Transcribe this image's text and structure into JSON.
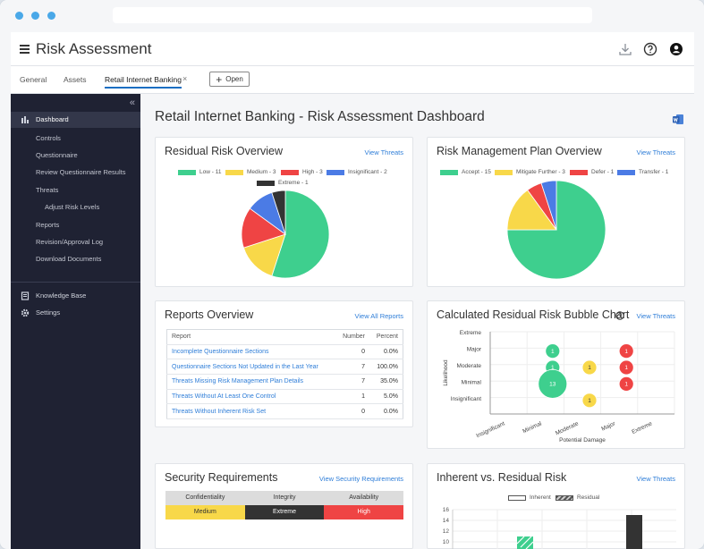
{
  "browser": {
    "dots": 3
  },
  "app": {
    "title": "Risk Assessment"
  },
  "tabs": [
    {
      "label": "General"
    },
    {
      "label": "Assets"
    },
    {
      "label": "Retail Internet Banking",
      "active": true
    }
  ],
  "open_button": {
    "label": "Open"
  },
  "sidebar": {
    "dashboard": "Dashboard",
    "items": [
      {
        "label": "Controls"
      },
      {
        "label": "Questionnaire"
      },
      {
        "label": "Review Questionnaire Results"
      },
      {
        "label": "Threats"
      },
      {
        "label": "Adjust Risk Levels"
      },
      {
        "label": "Reports"
      },
      {
        "label": "Revision/Approval Log"
      },
      {
        "label": "Download Documents"
      }
    ],
    "knowledge_base": "Knowledge Base",
    "settings": "Settings"
  },
  "page": {
    "title": "Retail Internet Banking - Risk Assessment Dashboard"
  },
  "residual": {
    "title": "Residual Risk Overview",
    "link": "View Threats",
    "legend": [
      {
        "label": "Low - 11",
        "color": "#3ecf8e"
      },
      {
        "label": "Medium - 3",
        "color": "#f8d849"
      },
      {
        "label": "High - 3",
        "color": "#ef4444"
      },
      {
        "label": "Insignificant - 2",
        "color": "#4b7be5"
      },
      {
        "label": "Extreme - 1",
        "color": "#333333"
      }
    ]
  },
  "rmp": {
    "title": "Risk Management Plan Overview",
    "link": "View Threats",
    "legend": [
      {
        "label": "Accept - 15",
        "color": "#3ecf8e"
      },
      {
        "label": "Mitigate Further - 3",
        "color": "#f8d849"
      },
      {
        "label": "Defer - 1",
        "color": "#ef4444"
      },
      {
        "label": "Transfer - 1",
        "color": "#4b7be5"
      }
    ]
  },
  "reports": {
    "title": "Reports Overview",
    "link": "View All Reports",
    "headers": {
      "report": "Report",
      "number": "Number",
      "percent": "Percent"
    },
    "rows": [
      {
        "name": "Incomplete Questionnaire Sections",
        "number": "0",
        "percent": "0.0%"
      },
      {
        "name": "Questionnaire Sections Not Updated in the Last Year",
        "number": "7",
        "percent": "100.0%"
      },
      {
        "name": "Threats Missing Risk Management Plan Details",
        "number": "7",
        "percent": "35.0%"
      },
      {
        "name": "Threats Without At Least One Control",
        "number": "1",
        "percent": "5.0%"
      },
      {
        "name": "Threats Without Inherent Risk Set",
        "number": "0",
        "percent": "0.0%"
      }
    ]
  },
  "bubble": {
    "title": "Calculated Residual Risk Bubble Chart",
    "link": "View Threats",
    "y_labels": [
      "Extreme",
      "Major",
      "Moderate",
      "Minimal",
      "Insignificant"
    ],
    "x_labels": [
      "Insignificant",
      "Minimal",
      "Moderate",
      "Major",
      "Extreme"
    ],
    "y_axis": "Likelihood",
    "x_axis": "Potential Damage"
  },
  "security": {
    "title": "Security Requirements",
    "link": "View Security Requirements",
    "headers": [
      "Confidentiality",
      "Integrity",
      "Availability"
    ],
    "values": [
      "Medium",
      "Extreme",
      "High"
    ]
  },
  "inherent": {
    "title": "Inherent vs. Residual Risk",
    "link": "View Threats",
    "legend_inherent": "Inherent",
    "legend_residual": "Residual",
    "y_ticks": [
      "16",
      "14",
      "12",
      "10"
    ]
  },
  "chart_data": [
    {
      "type": "pie",
      "categories": [
        "Low",
        "Medium",
        "High",
        "Insignificant",
        "Extreme"
      ],
      "values": [
        11,
        3,
        3,
        2,
        1
      ],
      "colors": [
        "#3ecf8e",
        "#f8d849",
        "#ef4444",
        "#4b7be5",
        "#333333"
      ]
    },
    {
      "type": "pie",
      "categories": [
        "Accept",
        "Mitigate Further",
        "Defer",
        "Transfer"
      ],
      "values": [
        15,
        3,
        1,
        1
      ],
      "colors": [
        "#3ecf8e",
        "#f8d849",
        "#ef4444",
        "#4b7be5"
      ]
    },
    {
      "type": "scatter",
      "x_categories": [
        "Insignificant",
        "Minimal",
        "Moderate",
        "Major",
        "Extreme"
      ],
      "y_categories": [
        "Extreme",
        "Major",
        "Moderate",
        "Minimal",
        "Insignificant"
      ],
      "points": [
        {
          "x": "Minimal",
          "y": "Major",
          "value": 1,
          "color": "#3ecf8e"
        },
        {
          "x": "Minimal",
          "y": "Moderate",
          "value": 1,
          "color": "#3ecf8e"
        },
        {
          "x": "Minimal",
          "y": "Minimal",
          "value": 13,
          "color": "#3ecf8e"
        },
        {
          "x": "Moderate",
          "y": "Moderate",
          "value": 1,
          "color": "#f8d849"
        },
        {
          "x": "Moderate",
          "y": "Insignificant",
          "value": 1,
          "color": "#f8d849"
        },
        {
          "x": "Major",
          "y": "Major",
          "value": 1,
          "color": "#ef4444"
        },
        {
          "x": "Major",
          "y": "Moderate",
          "value": 1,
          "color": "#ef4444"
        },
        {
          "x": "Major",
          "y": "Minimal",
          "value": 1,
          "color": "#ef4444"
        }
      ]
    }
  ]
}
